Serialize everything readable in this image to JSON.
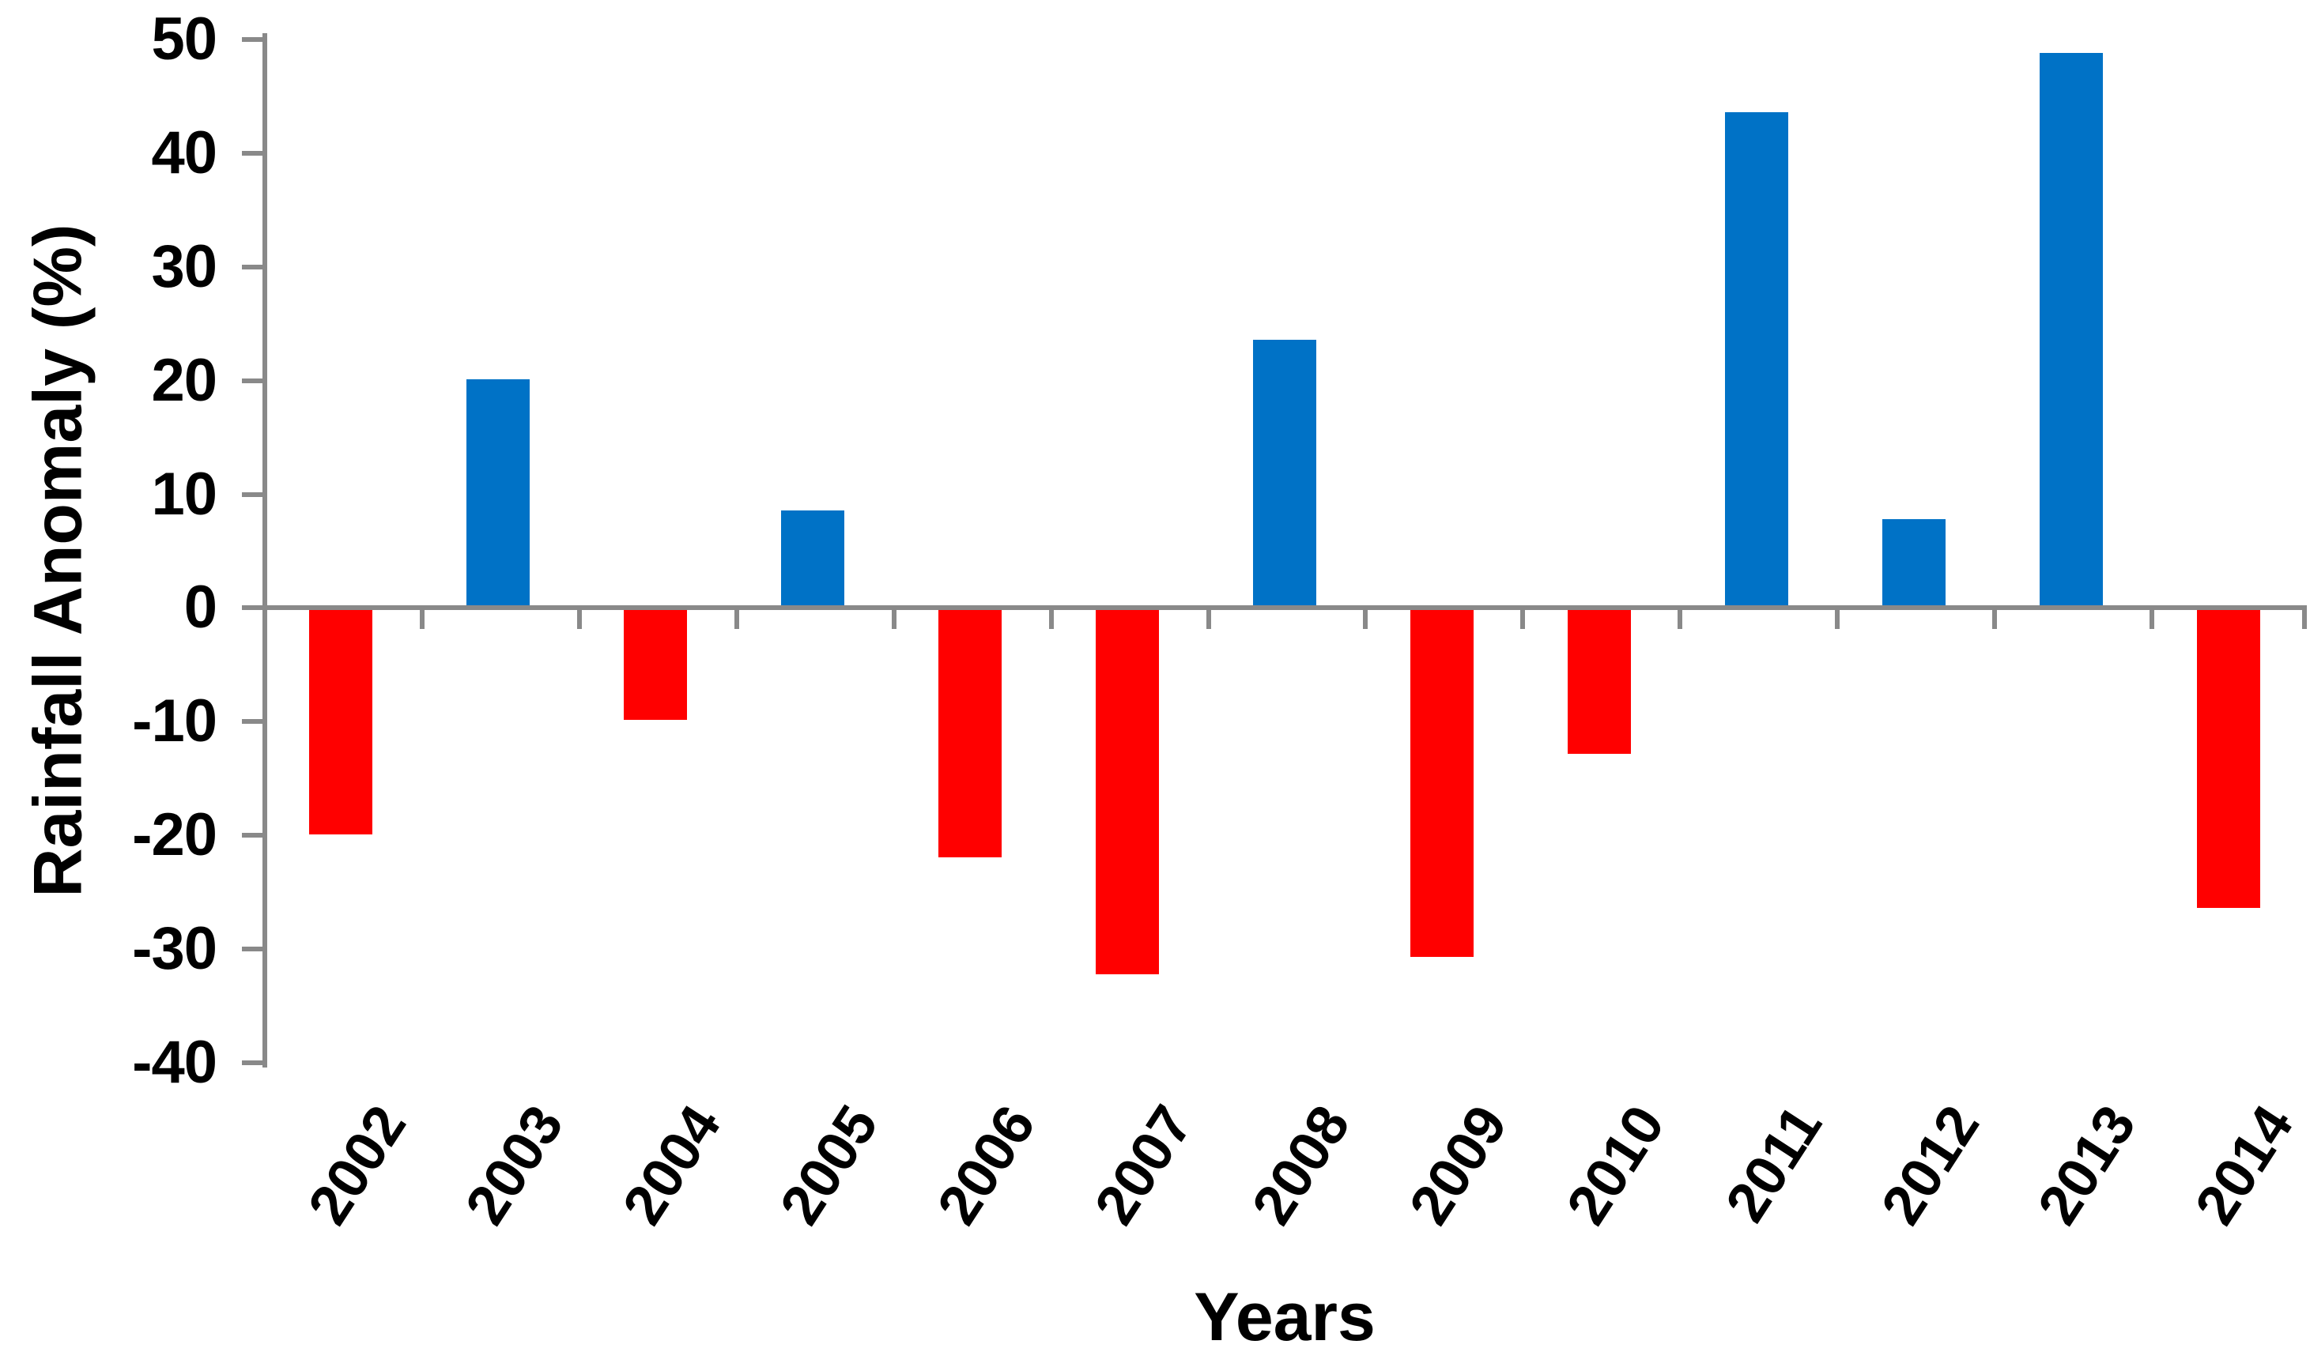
{
  "chart_data": {
    "type": "bar",
    "title": "",
    "xlabel": "Years",
    "ylabel": "Rainfall Anomaly (%)",
    "categories": [
      "2002",
      "2003",
      "2004",
      "2005",
      "2006",
      "2007",
      "2008",
      "2009",
      "2010",
      "2011",
      "2012",
      "2013",
      "2014"
    ],
    "values": [
      -19.7,
      19.9,
      -9.6,
      8.4,
      -21.7,
      -32.0,
      23.4,
      -30.5,
      -12.6,
      43.4,
      7.6,
      48.6,
      -26.2
    ],
    "ylim": [
      -40,
      50
    ],
    "ytick_step": 10,
    "yticks": [
      "50",
      "40",
      "30",
      "20",
      "10",
      "0",
      "-10",
      "-20",
      "-30",
      "-40"
    ],
    "grid": false,
    "legend": false,
    "positive_color": "#0072C6",
    "negative_color": "#FF0000",
    "axis_color": "#898989",
    "text_color": "#000000"
  }
}
